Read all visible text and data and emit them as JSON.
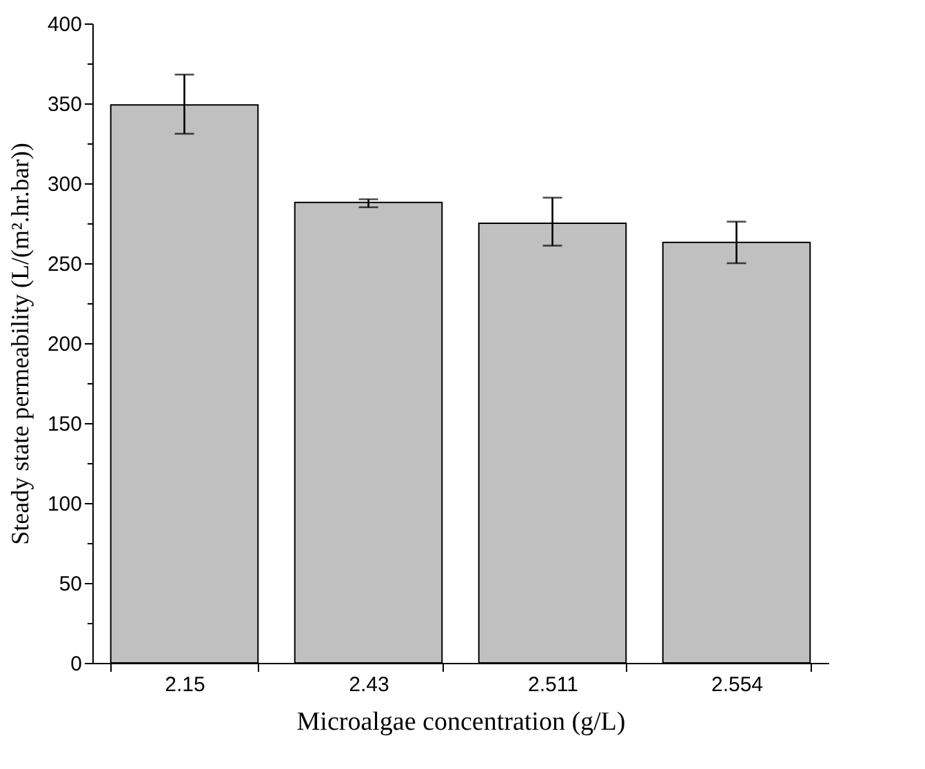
{
  "chart_data": {
    "type": "bar",
    "xlabel": "Microalgae concentration (g/L)",
    "ylabel": "Steady state permeability (L/(m².hr.bar))",
    "categories": [
      "2.15",
      "2.43",
      "2.511",
      "2.554"
    ],
    "values": [
      349,
      288,
      275,
      263
    ],
    "errors": [
      [
        331,
        368
      ],
      [
        285,
        290
      ],
      [
        261,
        291
      ],
      [
        250,
        276
      ]
    ],
    "color": "#c0c0c0",
    "ylim": [
      0,
      400
    ],
    "yticks": [
      0,
      {
        "value": 25,
        "label": null
      },
      50,
      {
        "value": 75,
        "label": null
      },
      100,
      {
        "value": 125,
        "label": null
      },
      150,
      {
        "value": 175,
        "label": null
      },
      200,
      {
        "value": 225,
        "label": null
      },
      250,
      {
        "value": 275,
        "label": null
      },
      300,
      {
        "value": 325,
        "label": null
      },
      350,
      {
        "value": 375,
        "label": null
      },
      400
    ],
    "grid": false
  }
}
